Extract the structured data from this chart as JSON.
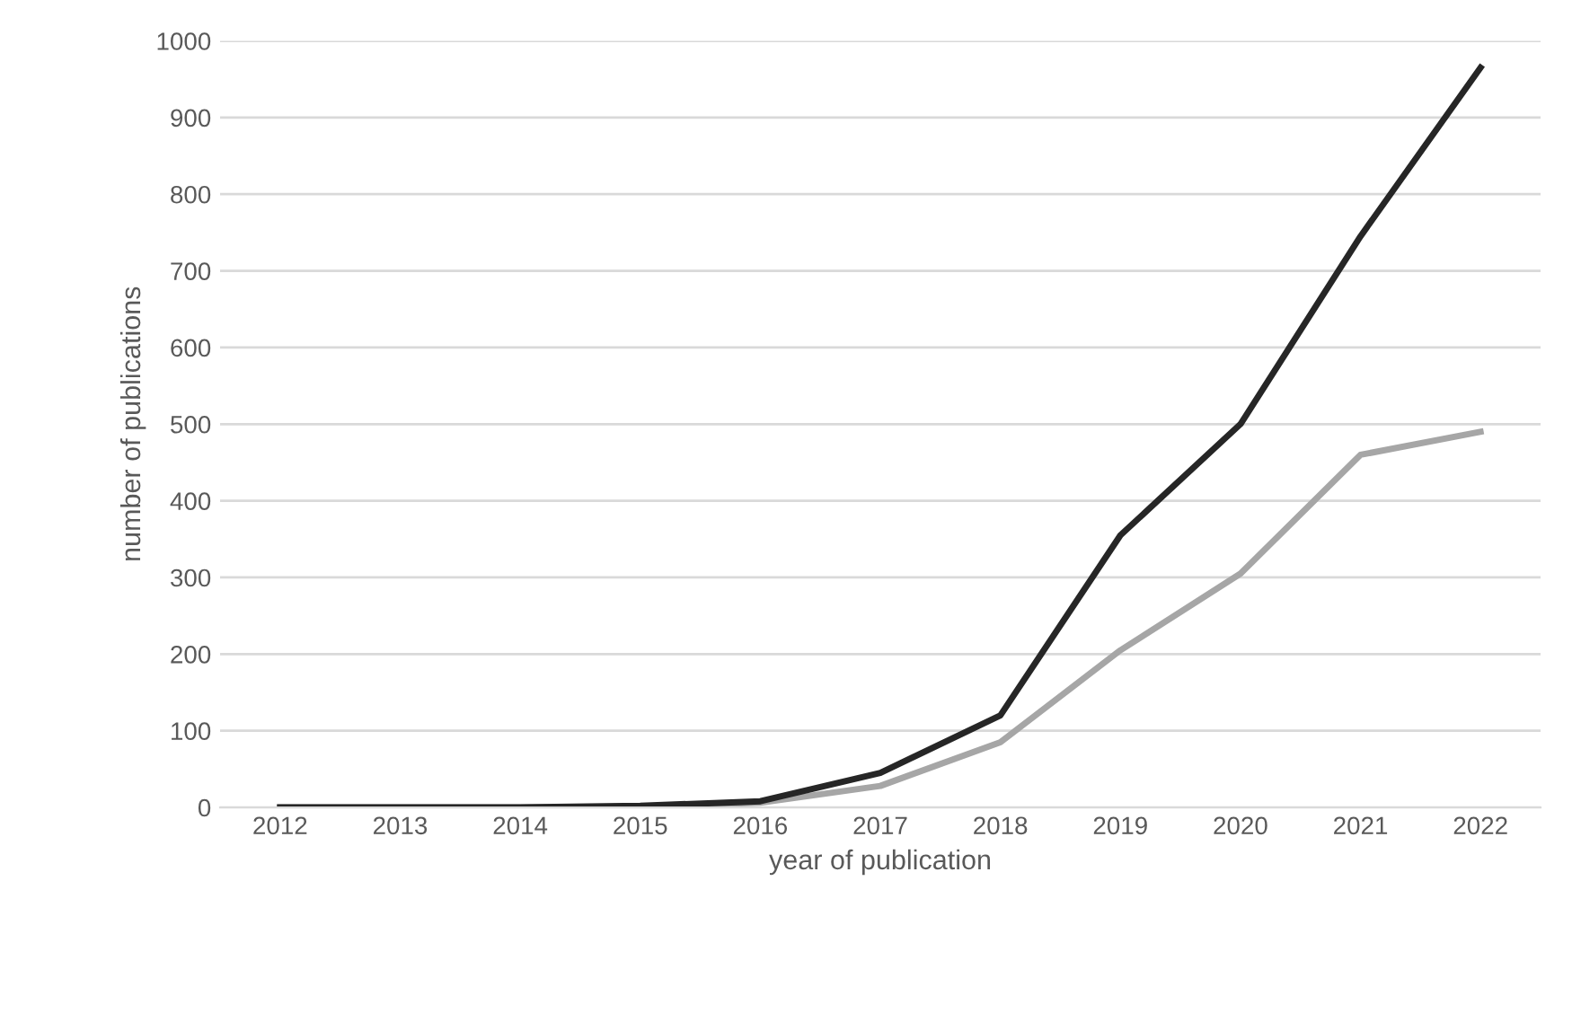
{
  "chart_data": {
    "type": "line",
    "xlabel": "year of publication",
    "ylabel": "number of publications",
    "categories": [
      "2012",
      "2013",
      "2014",
      "2015",
      "2016",
      "2017",
      "2018",
      "2019",
      "2020",
      "2021",
      "2022"
    ],
    "series": [
      {
        "color": "#a6a6a6",
        "values": [
          0,
          0,
          0,
          1,
          6,
          28,
          85,
          205,
          305,
          460,
          490
        ]
      },
      {
        "color": "#262626",
        "values": [
          0,
          0,
          0,
          2,
          8,
          45,
          120,
          355,
          500,
          745,
          965
        ]
      }
    ],
    "ylim": [
      0,
      1000
    ],
    "yticks": [
      0,
      100,
      200,
      300,
      400,
      500,
      600,
      700,
      800,
      900,
      1000
    ],
    "grid": "y",
    "marker": "none",
    "line_style": "solid"
  }
}
